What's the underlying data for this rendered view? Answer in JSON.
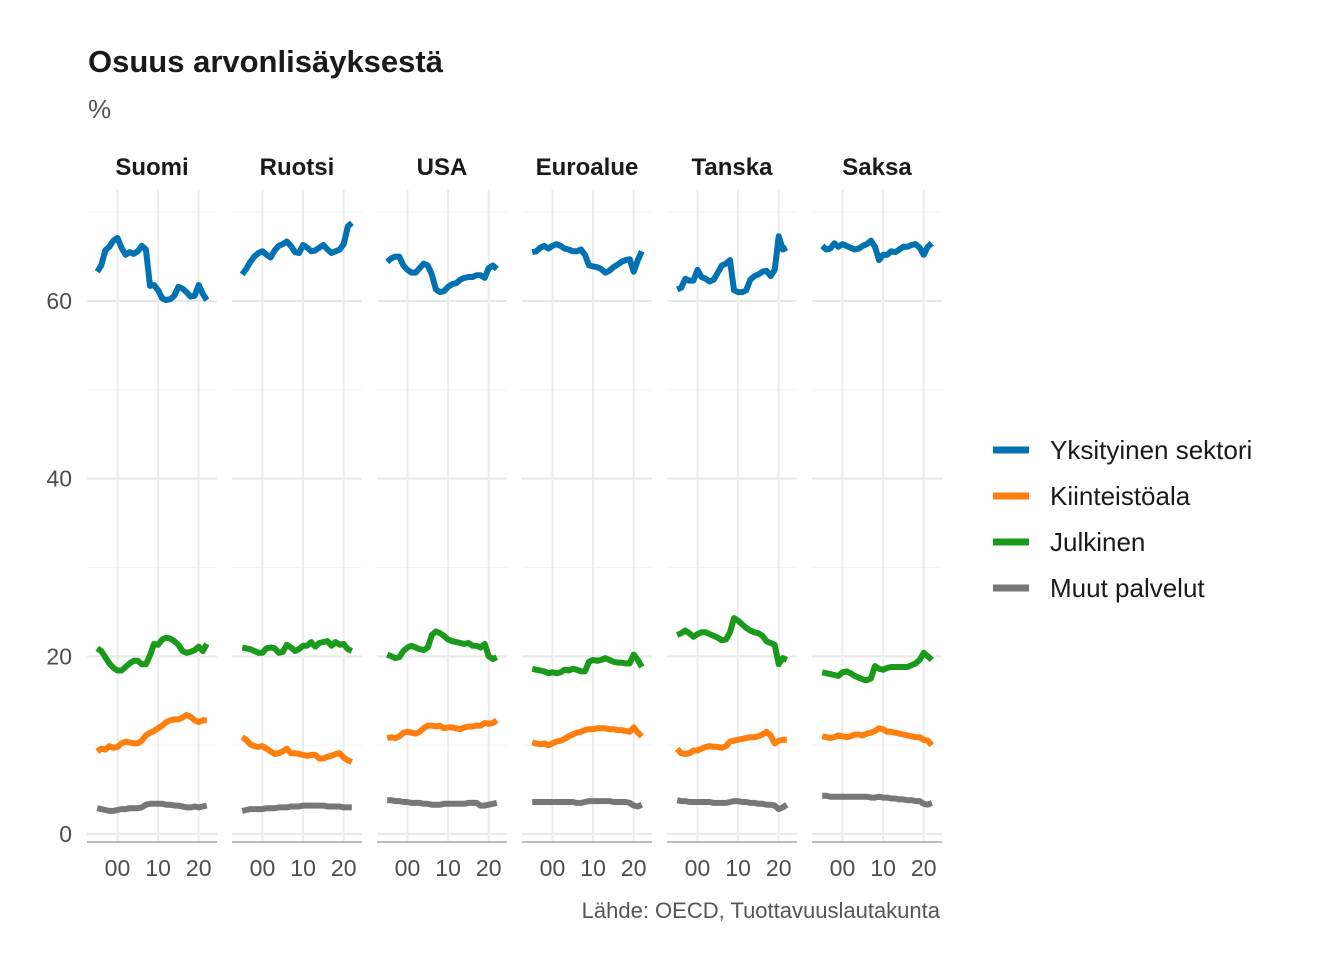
{
  "chart_data": {
    "type": "line",
    "title": "Osuus arvonlisäyksestä",
    "subtitle": "%",
    "caption": "Lähde: OECD, Tuottavuuslautakunta",
    "x_ticks": [
      "00",
      "10",
      "20"
    ],
    "x_tick_values": [
      2000,
      2010,
      2020
    ],
    "y_ticks": [
      0,
      20,
      40,
      60
    ],
    "ylim": [
      0,
      70
    ],
    "grid": true,
    "legend_position": "right",
    "series_defs": [
      {
        "key": "yksityinen",
        "name": "Yksityinen sektori",
        "color": "#0072B2"
      },
      {
        "key": "kiinteisto",
        "name": "Kiinteistöala",
        "color": "#FF7F0E"
      },
      {
        "key": "julkinen",
        "name": "Julkinen",
        "color": "#1A9A1A"
      },
      {
        "key": "muut",
        "name": "Muut palvelut",
        "color": "#777777"
      }
    ],
    "panels": [
      {
        "name": "Suomi",
        "x": [
          1995,
          1996,
          1997,
          1998,
          1999,
          2000,
          2001,
          2002,
          2003,
          2004,
          2005,
          2006,
          2007,
          2008,
          2009,
          2010,
          2011,
          2012,
          2013,
          2014,
          2015,
          2016,
          2017,
          2018,
          2019,
          2020,
          2021,
          2022
        ],
        "yksityinen": [
          63.3,
          64.0,
          65.7,
          66.1,
          66.8,
          67.1,
          66.0,
          65.2,
          65.5,
          65.3,
          65.6,
          66.2,
          65.8,
          61.7,
          61.8,
          61.2,
          60.3,
          60.1,
          60.2,
          60.6,
          61.6,
          61.4,
          61.0,
          60.5,
          60.6,
          61.8,
          60.8,
          60.1
        ],
        "kiinteisto": [
          9.3,
          9.6,
          9.5,
          9.9,
          9.7,
          9.8,
          10.2,
          10.4,
          10.3,
          10.2,
          10.2,
          10.5,
          11.1,
          11.4,
          11.6,
          11.9,
          12.2,
          12.6,
          12.8,
          12.9,
          12.9,
          13.1,
          13.4,
          13.2,
          12.8,
          12.6,
          12.8,
          12.8
        ],
        "julkinen": [
          20.9,
          20.6,
          19.9,
          19.2,
          18.7,
          18.4,
          18.4,
          18.8,
          19.2,
          19.5,
          19.5,
          19.1,
          19.1,
          20.1,
          21.4,
          21.3,
          21.9,
          22.1,
          22.0,
          21.7,
          21.3,
          20.6,
          20.4,
          20.5,
          20.7,
          21.1,
          20.6,
          21.4
        ],
        "muut": [
          2.9,
          2.8,
          2.7,
          2.6,
          2.6,
          2.7,
          2.8,
          2.8,
          2.9,
          2.9,
          2.9,
          3.0,
          3.3,
          3.4,
          3.4,
          3.4,
          3.4,
          3.3,
          3.3,
          3.2,
          3.2,
          3.1,
          3.0,
          3.0,
          3.1,
          3.0,
          3.1,
          3.2
        ]
      },
      {
        "name": "Ruotsi",
        "x": [
          1995,
          1996,
          1997,
          1998,
          1999,
          2000,
          2001,
          2002,
          2003,
          2004,
          2005,
          2006,
          2007,
          2008,
          2009,
          2010,
          2011,
          2012,
          2013,
          2014,
          2015,
          2016,
          2017,
          2018,
          2019,
          2020,
          2021,
          2022
        ],
        "yksityinen": [
          63.0,
          63.6,
          64.4,
          65.0,
          65.4,
          65.6,
          65.2,
          64.9,
          65.7,
          66.2,
          66.4,
          66.7,
          66.2,
          65.5,
          65.4,
          66.3,
          66.0,
          65.6,
          65.7,
          66.0,
          66.3,
          65.8,
          65.4,
          65.6,
          65.8,
          66.4,
          68.4,
          68.8
        ],
        "kiinteisto": [
          10.9,
          10.6,
          10.1,
          9.9,
          9.8,
          9.9,
          9.6,
          9.3,
          9.0,
          9.1,
          9.3,
          9.6,
          9.1,
          9.1,
          9.0,
          8.9,
          8.8,
          8.9,
          8.9,
          8.5,
          8.5,
          8.7,
          8.8,
          9.0,
          9.1,
          8.6,
          8.3,
          8.1
        ],
        "julkinen": [
          21.0,
          20.9,
          20.8,
          20.6,
          20.4,
          20.4,
          20.9,
          21.0,
          20.9,
          20.4,
          20.5,
          21.3,
          21.0,
          20.6,
          20.8,
          21.2,
          21.2,
          21.6,
          21.1,
          21.5,
          21.6,
          21.7,
          21.2,
          21.6,
          21.3,
          21.4,
          20.8,
          20.6
        ],
        "muut": [
          2.6,
          2.7,
          2.8,
          2.8,
          2.8,
          2.8,
          2.9,
          2.9,
          2.9,
          3.0,
          3.0,
          3.0,
          3.1,
          3.1,
          3.1,
          3.2,
          3.2,
          3.2,
          3.2,
          3.2,
          3.2,
          3.1,
          3.1,
          3.1,
          3.1,
          3.0,
          3.0,
          3.0
        ]
      },
      {
        "name": "USA",
        "x": [
          1995,
          1996,
          1997,
          1998,
          1999,
          2000,
          2001,
          2002,
          2003,
          2004,
          2005,
          2006,
          2007,
          2008,
          2009,
          2010,
          2011,
          2012,
          2013,
          2014,
          2015,
          2016,
          2017,
          2018,
          2019,
          2020,
          2021,
          2022
        ],
        "yksityinen": [
          64.4,
          64.8,
          65.0,
          65.0,
          64.0,
          63.5,
          63.2,
          63.2,
          63.7,
          64.2,
          64.0,
          63.0,
          61.3,
          61.0,
          61.1,
          61.6,
          61.9,
          62.0,
          62.4,
          62.6,
          62.7,
          62.7,
          62.9,
          62.9,
          62.6,
          63.7,
          64.0,
          63.6
        ],
        "kiinteisto": [
          10.8,
          10.9,
          10.8,
          11.0,
          11.4,
          11.5,
          11.4,
          11.3,
          11.5,
          11.9,
          12.2,
          12.2,
          12.1,
          12.2,
          11.9,
          12.0,
          12.0,
          11.9,
          11.8,
          12.0,
          12.1,
          12.1,
          12.2,
          12.2,
          12.5,
          12.4,
          12.5,
          12.8
        ],
        "julkinen": [
          20.2,
          20.0,
          19.8,
          19.9,
          20.6,
          21.0,
          21.2,
          21.0,
          20.8,
          20.7,
          21.0,
          22.4,
          22.8,
          22.6,
          22.3,
          21.9,
          21.7,
          21.6,
          21.5,
          21.4,
          21.5,
          21.2,
          21.2,
          21.0,
          21.4,
          20.0,
          19.7,
          19.9
        ],
        "muut": [
          3.8,
          3.8,
          3.7,
          3.7,
          3.6,
          3.6,
          3.5,
          3.5,
          3.5,
          3.4,
          3.4,
          3.3,
          3.3,
          3.3,
          3.4,
          3.4,
          3.4,
          3.4,
          3.4,
          3.4,
          3.5,
          3.5,
          3.5,
          3.2,
          3.2,
          3.3,
          3.4,
          3.5
        ]
      },
      {
        "name": "Euroalue",
        "x": [
          1995,
          1996,
          1997,
          1998,
          1999,
          2000,
          2001,
          2002,
          2003,
          2004,
          2005,
          2006,
          2007,
          2008,
          2009,
          2010,
          2011,
          2012,
          2013,
          2014,
          2015,
          2016,
          2017,
          2018,
          2019,
          2020,
          2021,
          2022
        ],
        "yksityinen": [
          65.5,
          65.6,
          66.0,
          66.2,
          65.9,
          66.2,
          66.4,
          66.2,
          65.9,
          65.8,
          65.6,
          65.6,
          65.8,
          65.2,
          64.0,
          63.9,
          63.8,
          63.6,
          63.2,
          63.4,
          63.8,
          64.1,
          64.4,
          64.6,
          64.7,
          63.3,
          64.6,
          65.6
        ],
        "kiinteisto": [
          10.3,
          10.2,
          10.1,
          10.2,
          10.0,
          10.2,
          10.4,
          10.5,
          10.7,
          11.0,
          11.2,
          11.4,
          11.5,
          11.7,
          11.8,
          11.8,
          11.9,
          11.9,
          11.9,
          11.8,
          11.8,
          11.7,
          11.7,
          11.6,
          11.5,
          12.0,
          11.4,
          11.0
        ],
        "julkinen": [
          18.6,
          18.5,
          18.4,
          18.3,
          18.1,
          18.2,
          18.1,
          18.2,
          18.5,
          18.4,
          18.6,
          18.5,
          18.3,
          18.3,
          19.4,
          19.6,
          19.5,
          19.6,
          19.8,
          19.6,
          19.4,
          19.3,
          19.3,
          19.2,
          19.2,
          20.2,
          19.6,
          18.8
        ],
        "muut": [
          3.6,
          3.6,
          3.6,
          3.6,
          3.6,
          3.6,
          3.6,
          3.6,
          3.6,
          3.6,
          3.6,
          3.5,
          3.5,
          3.6,
          3.7,
          3.7,
          3.7,
          3.7,
          3.7,
          3.7,
          3.6,
          3.6,
          3.6,
          3.6,
          3.5,
          3.2,
          3.1,
          3.3
        ]
      },
      {
        "name": "Tanska",
        "x": [
          1995,
          1996,
          1997,
          1998,
          1999,
          2000,
          2001,
          2002,
          2003,
          2004,
          2005,
          2006,
          2007,
          2008,
          2009,
          2010,
          2011,
          2012,
          2013,
          2014,
          2015,
          2016,
          2017,
          2018,
          2019,
          2020,
          2021,
          2022
        ],
        "yksityinen": [
          61.3,
          61.5,
          62.5,
          62.3,
          62.3,
          63.5,
          62.7,
          62.5,
          62.2,
          62.4,
          63.2,
          64.0,
          64.2,
          64.6,
          61.2,
          61.0,
          61.0,
          61.2,
          62.4,
          62.8,
          63.0,
          63.3,
          63.4,
          62.8,
          63.5,
          67.3,
          65.8,
          66.0
        ],
        "kiinteisto": [
          9.6,
          9.1,
          9.0,
          9.1,
          9.4,
          9.4,
          9.6,
          9.8,
          9.9,
          9.8,
          9.8,
          9.7,
          9.9,
          10.4,
          10.5,
          10.6,
          10.7,
          10.8,
          10.9,
          10.9,
          11.0,
          11.2,
          11.5,
          11.1,
          10.2,
          10.5,
          10.6,
          10.6
        ],
        "julkinen": [
          22.4,
          22.6,
          22.9,
          22.6,
          22.2,
          22.5,
          22.7,
          22.7,
          22.5,
          22.3,
          22.1,
          21.8,
          21.9,
          22.7,
          24.3,
          24.0,
          23.6,
          23.2,
          22.9,
          22.7,
          22.6,
          22.3,
          21.7,
          21.5,
          21.3,
          19.1,
          19.8,
          19.6
        ],
        "muut": [
          3.8,
          3.7,
          3.7,
          3.6,
          3.6,
          3.6,
          3.6,
          3.6,
          3.6,
          3.5,
          3.5,
          3.5,
          3.5,
          3.6,
          3.7,
          3.7,
          3.6,
          3.6,
          3.5,
          3.5,
          3.4,
          3.4,
          3.3,
          3.3,
          3.2,
          2.8,
          3.0,
          3.3
        ]
      },
      {
        "name": "Saksa",
        "x": [
          1995,
          1996,
          1997,
          1998,
          1999,
          2000,
          2001,
          2002,
          2003,
          2004,
          2005,
          2006,
          2007,
          2008,
          2009,
          2010,
          2011,
          2012,
          2013,
          2014,
          2015,
          2016,
          2017,
          2018,
          2019,
          2020,
          2021,
          2022
        ],
        "yksityinen": [
          66.2,
          65.8,
          65.9,
          66.5,
          66.1,
          66.4,
          66.2,
          66.0,
          65.8,
          65.9,
          66.2,
          66.4,
          66.8,
          66.1,
          64.6,
          65.2,
          65.2,
          65.6,
          65.5,
          65.8,
          66.1,
          66.1,
          66.3,
          66.4,
          66.0,
          65.2,
          66.1,
          66.5
        ],
        "kiinteisto": [
          11.0,
          10.9,
          10.8,
          10.9,
          11.1,
          11.0,
          10.9,
          11.0,
          11.2,
          11.2,
          11.1,
          11.3,
          11.4,
          11.6,
          11.9,
          11.8,
          11.5,
          11.5,
          11.4,
          11.3,
          11.2,
          11.1,
          11.0,
          10.9,
          10.9,
          10.6,
          10.5,
          10.0
        ],
        "julkinen": [
          18.2,
          18.1,
          18.0,
          17.9,
          17.8,
          18.2,
          18.3,
          18.1,
          17.8,
          17.6,
          17.4,
          17.3,
          17.5,
          18.9,
          18.6,
          18.5,
          18.7,
          18.8,
          18.8,
          18.8,
          18.8,
          18.8,
          19.0,
          19.2,
          19.6,
          20.4,
          20.0,
          19.6
        ],
        "muut": [
          4.3,
          4.3,
          4.2,
          4.2,
          4.2,
          4.2,
          4.2,
          4.2,
          4.2,
          4.2,
          4.2,
          4.2,
          4.1,
          4.1,
          4.2,
          4.1,
          4.1,
          4.0,
          4.0,
          3.9,
          3.9,
          3.8,
          3.8,
          3.7,
          3.7,
          3.4,
          3.3,
          3.5
        ]
      }
    ]
  }
}
